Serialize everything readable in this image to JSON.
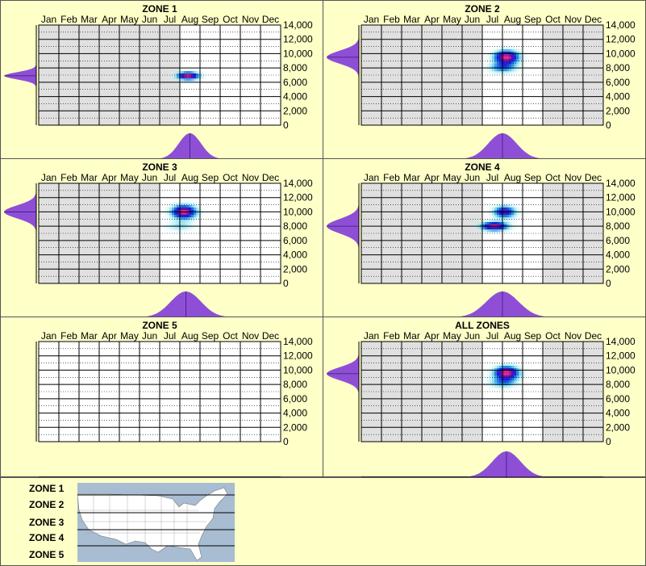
{
  "chart_data": [
    {
      "type": "heatmap",
      "title": "ZONE 1",
      "x_categories": [
        "Jan",
        "Feb",
        "Mar",
        "Apr",
        "May",
        "Jun",
        "Jul",
        "Aug",
        "Sep",
        "Oct",
        "Nov",
        "Dec"
      ],
      "y_ticks": [
        "14,000",
        "12,000",
        "10,000",
        "8,000",
        "6,000",
        "4,000",
        "2,000",
        "0"
      ],
      "ylim": [
        0,
        14000
      ],
      "shaded_months": [
        "Jan",
        "Feb",
        "Mar",
        "Apr",
        "May",
        "Jun",
        "Jul"
      ],
      "density_peaks": [
        {
          "month": 7.4,
          "elevation": 6900,
          "sx": 0.4,
          "sy": 400,
          "w": 1.0
        }
      ],
      "month_distribution": {
        "peak": 7.5,
        "sd": 0.55
      },
      "elevation_distribution": {
        "peak": 6900,
        "sd": 500
      }
    },
    {
      "type": "heatmap",
      "title": "ZONE 2",
      "x_categories": [
        "Jan",
        "Feb",
        "Mar",
        "Apr",
        "May",
        "Jun",
        "Jul",
        "Aug",
        "Sep",
        "Oct",
        "Nov",
        "Dec"
      ],
      "y_ticks": [
        "14,000",
        "12,000",
        "10,000",
        "8,000",
        "6,000",
        "4,000",
        "2,000",
        "0"
      ],
      "ylim": [
        0,
        14000
      ],
      "shaded_months": [
        "Jan",
        "Feb",
        "Mar",
        "Apr",
        "May",
        "Jun",
        "Oct",
        "Nov",
        "Dec"
      ],
      "density_peaks": [
        {
          "month": 7.2,
          "elevation": 9500,
          "sx": 0.45,
          "sy": 700,
          "w": 1.0
        },
        {
          "month": 7.0,
          "elevation": 8000,
          "sx": 0.5,
          "sy": 500,
          "w": 0.5
        }
      ],
      "month_distribution": {
        "peak": 7.0,
        "sd": 0.7
      },
      "elevation_distribution": {
        "peak": 9500,
        "sd": 900
      }
    },
    {
      "type": "heatmap",
      "title": "ZONE 3",
      "x_categories": [
        "Jan",
        "Feb",
        "Mar",
        "Apr",
        "May",
        "Jun",
        "Jul",
        "Aug",
        "Sep",
        "Oct",
        "Nov",
        "Dec"
      ],
      "y_ticks": [
        "14,000",
        "12,000",
        "10,000",
        "8,000",
        "6,000",
        "4,000",
        "2,000",
        "0"
      ],
      "ylim": [
        0,
        14000
      ],
      "shaded_months": [
        "Jan",
        "Feb",
        "Mar",
        "Apr",
        "May",
        "Jun"
      ],
      "density_peaks": [
        {
          "month": 7.2,
          "elevation": 10000,
          "sx": 0.45,
          "sy": 700,
          "w": 1.0
        },
        {
          "month": 7.0,
          "elevation": 8000,
          "sx": 0.5,
          "sy": 500,
          "w": 0.3
        }
      ],
      "month_distribution": {
        "peak": 7.3,
        "sd": 0.75
      },
      "elevation_distribution": {
        "peak": 10000,
        "sd": 900
      }
    },
    {
      "type": "heatmap",
      "title": "ZONE 4",
      "x_categories": [
        "Jan",
        "Feb",
        "Mar",
        "Apr",
        "May",
        "Jun",
        "Jul",
        "Aug",
        "Sep",
        "Oct",
        "Nov",
        "Dec"
      ],
      "y_ticks": [
        "14,000",
        "12,000",
        "10,000",
        "8,000",
        "6,000",
        "4,000",
        "2,000",
        "0"
      ],
      "ylim": [
        0,
        14000
      ],
      "shaded_months": [
        "Jan",
        "Feb",
        "Mar",
        "Apr",
        "May",
        "Jun",
        "Oct",
        "Nov",
        "Dec"
      ],
      "density_peaks": [
        {
          "month": 6.6,
          "elevation": 8000,
          "sx": 0.5,
          "sy": 450,
          "w": 0.95
        },
        {
          "month": 7.1,
          "elevation": 10000,
          "sx": 0.4,
          "sy": 600,
          "w": 0.8
        }
      ],
      "month_distribution": {
        "peak": 7.0,
        "sd": 0.8
      },
      "elevation_distribution": {
        "peak": 8000,
        "sd": 1000
      }
    },
    {
      "type": "heatmap",
      "title": "ZONE 5",
      "x_categories": [
        "Jan",
        "Feb",
        "Mar",
        "Apr",
        "May",
        "Jun",
        "Jul",
        "Aug",
        "Sep",
        "Oct",
        "Nov",
        "Dec"
      ],
      "y_ticks": [
        "14,000",
        "12,000",
        "10,000",
        "8,000",
        "6,000",
        "4,000",
        "2,000",
        "0"
      ],
      "ylim": [
        0,
        14000
      ],
      "shaded_months": [],
      "density_peaks": [],
      "month_distribution": null,
      "elevation_distribution": null
    },
    {
      "type": "heatmap",
      "title": "ALL ZONES",
      "x_categories": [
        "Jan",
        "Feb",
        "Mar",
        "Apr",
        "May",
        "Jun",
        "Jul",
        "Aug",
        "Sep",
        "Oct",
        "Nov",
        "Dec"
      ],
      "y_ticks": [
        "14,000",
        "12,000",
        "10,000",
        "8,000",
        "6,000",
        "4,000",
        "2,000",
        "0"
      ],
      "ylim": [
        0,
        14000
      ],
      "shaded_months": [
        "Jan",
        "Feb",
        "Mar",
        "Apr",
        "May",
        "Jun",
        "Oct",
        "Nov",
        "Dec"
      ],
      "density_peaks": [
        {
          "month": 7.2,
          "elevation": 9600,
          "sx": 0.45,
          "sy": 700,
          "w": 1.0
        },
        {
          "month": 7.0,
          "elevation": 8200,
          "sx": 0.5,
          "sy": 500,
          "w": 0.4
        }
      ],
      "month_distribution": {
        "peak": 7.2,
        "sd": 0.7
      },
      "elevation_distribution": {
        "peak": 9500,
        "sd": 900
      }
    }
  ],
  "legend": {
    "zones": [
      "ZONE 1",
      "ZONE 2",
      "ZONE 3",
      "ZONE 4",
      "ZONE 5"
    ]
  },
  "colors": {
    "background": "#ffffc8",
    "shade": "#e0e0e0",
    "distribution": "#8e4fd6",
    "map_water": "#a8bdd2",
    "map_land": "#ffffff"
  }
}
